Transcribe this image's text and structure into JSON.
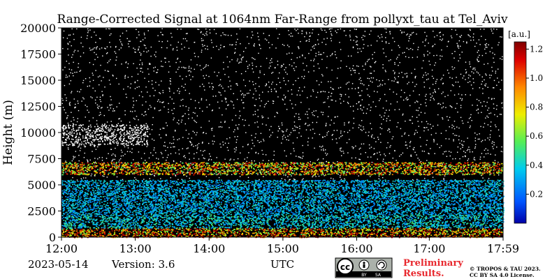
{
  "chart_data": {
    "type": "heatmap",
    "title": "Range-Corrected Signal at 1064nm Far-Range from pollyxt_tau at Tel_Aviv",
    "ylabel": "Height (m)",
    "xlabel": "UTC",
    "ylim": [
      0,
      20000
    ],
    "x_range": [
      "12:00",
      "17:59"
    ],
    "x_ticks": [
      "12:00",
      "13:00",
      "14:00",
      "15:00",
      "16:00",
      "16:59",
      "17:59"
    ],
    "x_tick_labels": [
      "12:00",
      "13:00",
      "14:00",
      "15:00",
      "16:00",
      "17:00",
      "17:59"
    ],
    "y_ticks": [
      0,
      2500,
      5000,
      7500,
      10000,
      12500,
      15000,
      17500,
      20000
    ],
    "y_tick_labels": [
      "0",
      "2500",
      "5000",
      "7500",
      "10000",
      "12500",
      "15000",
      "17500",
      "20000"
    ],
    "colorbar": {
      "unit": "[a.u.]",
      "range": [
        0,
        1.25
      ],
      "ticks": [
        0.2,
        0.4,
        0.6,
        0.8,
        1.0,
        1.2
      ],
      "tick_labels": [
        "0.2",
        "0.4",
        "0.6",
        "0.8",
        "1.0",
        "1.2"
      ],
      "colormap": "jet",
      "colors": [
        "#0000a8",
        "#0055ff",
        "#00ccee",
        "#55ee55",
        "#eeee00",
        "#ff8800",
        "#dd0000",
        "#800000"
      ]
    },
    "layers": [
      {
        "name": "surface",
        "bottom": 0,
        "top": 300,
        "value": 1.15
      },
      {
        "name": "boundary-layer-lower",
        "bottom": 300,
        "top": 900,
        "value": 0.95
      },
      {
        "name": "boundary-layer-upper",
        "bottom": 900,
        "top": 2200,
        "value": 0.4
      },
      {
        "name": "mixed-aerosol",
        "bottom": 2200,
        "top": 5500,
        "value": 0.35
      },
      {
        "name": "elevated-layer",
        "bottom": 6000,
        "top": 7200,
        "value": 0.9
      },
      {
        "name": "cirrus",
        "bottom": 8800,
        "top": 10800,
        "start": "12:00",
        "end": "13:10",
        "value": 1.25
      },
      {
        "name": "background-noise",
        "bottom": 7200,
        "top": 20000,
        "value": 0.0
      }
    ]
  },
  "footer": {
    "date": "2023-05-14",
    "version": "Version: 3.6",
    "xlabel": "UTC",
    "preliminary_line1": "Preliminary",
    "preliminary_line2": "Results.",
    "copyright_line1": "© TROPOS & TAU 2023.",
    "copyright_line2": "CC BY SA 4.0 License.",
    "cc_logo_text": "cc",
    "cc_by": "BY",
    "cc_sa": "SA"
  },
  "colors": {
    "preliminary": "#e8282e",
    "background_noise": "#000000",
    "cc_logo_bg": "#abb1aa"
  }
}
